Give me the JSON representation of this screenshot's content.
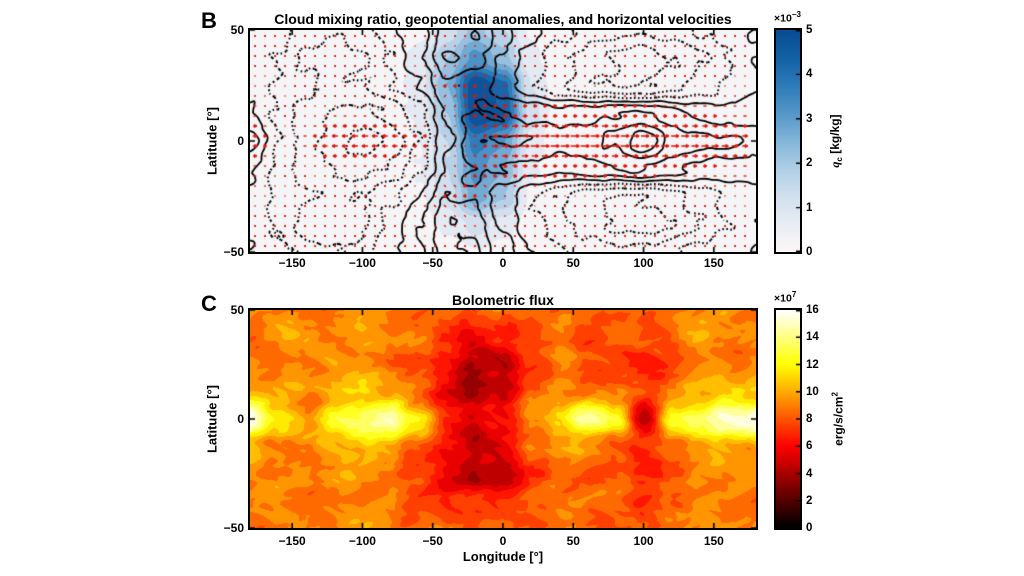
{
  "style": {
    "quiver_color": "#e81208",
    "contour_color": "#000000",
    "text_color": "#000000",
    "plot_background": "#fdf7f7"
  },
  "colormaps": {
    "blues": [
      "#fdf8f8",
      "#e9edf4",
      "#d2e0ee",
      "#b0cfe6",
      "#84b6da",
      "#5597c9",
      "#2f7cb9",
      "#1461a5",
      "#084c94"
    ],
    "hot": [
      "#000000",
      "#550000",
      "#aa0000",
      "#ff0000",
      "#ff5500",
      "#ffaa00",
      "#ffff00",
      "#ffff80",
      "#ffffff"
    ]
  },
  "panel_b": {
    "label": "B",
    "title": "Cloud mixing ratio, geopotential anomalies, and horizontal velocities",
    "ylabel": "Latitude [°]",
    "axis": {
      "xlim": [
        -180,
        180
      ],
      "ylim": [
        -50,
        50
      ],
      "xticks": [
        {
          "v": -150,
          "label": "−150"
        },
        {
          "v": -100,
          "label": "−100"
        },
        {
          "v": -50,
          "label": "−50"
        },
        {
          "v": 0,
          "label": "0"
        },
        {
          "v": 50,
          "label": "50"
        },
        {
          "v": 100,
          "label": "100"
        },
        {
          "v": 150,
          "label": "150"
        }
      ],
      "yticks": [
        {
          "v": 50,
          "label": "50"
        },
        {
          "v": 0,
          "label": "0"
        },
        {
          "v": -50,
          "label": "−50"
        }
      ]
    },
    "colorbar": {
      "multiplier_base": "×10",
      "multiplier_exp": "−3",
      "label_symbol": "q",
      "label_subscript": "c",
      "label_units": " [kg/kg]",
      "clim": [
        0,
        5
      ],
      "ticks": [
        {
          "v": 0,
          "label": "0"
        },
        {
          "v": 1,
          "label": "1"
        },
        {
          "v": 2,
          "label": "2"
        },
        {
          "v": 3,
          "label": "3"
        },
        {
          "v": 4,
          "label": "4"
        },
        {
          "v": 5,
          "label": "5"
        }
      ]
    },
    "chart_data": {
      "type": "heatmap+contour+quiver",
      "description": "Blue shading: cloud mixing ratio qc (x1e-3 kg/kg). Black contours: geopotential anomalies (solid positive, dotted negative). Red vectors: horizontal velocities with strong eastward equatorial jet east of the cloud patch near lon -20.",
      "lon": [
        -180,
        -160,
        -140,
        -120,
        -100,
        -80,
        -60,
        -40,
        -20,
        0,
        20,
        40,
        60,
        80,
        100,
        120,
        140,
        160,
        180
      ],
      "lat": [
        50,
        37.5,
        25,
        12.5,
        0,
        -12.5,
        -25,
        -37.5,
        -50
      ],
      "cloud_mixing_ratio_x1e-3": [
        [
          0,
          0,
          0,
          0,
          0,
          0,
          0.3,
          1.2,
          2.2,
          1.5,
          0.4,
          0,
          0,
          0,
          0,
          0,
          0,
          0,
          0
        ],
        [
          0,
          0,
          0,
          0,
          0,
          0.2,
          0.8,
          2.0,
          3.2,
          2.2,
          0.6,
          0.1,
          0,
          0,
          0,
          0,
          0,
          0,
          0
        ],
        [
          0,
          0,
          0,
          0,
          0.1,
          0.3,
          0.8,
          2.5,
          5.0,
          4.2,
          1.0,
          0.2,
          0,
          0,
          0,
          0,
          0,
          0,
          0
        ],
        [
          0,
          0,
          0,
          0,
          0.1,
          0.3,
          0.6,
          2.0,
          5.0,
          4.5,
          1.2,
          0.2,
          0,
          0,
          0,
          0,
          0,
          0,
          0
        ],
        [
          0,
          0,
          0,
          0,
          0.1,
          0.2,
          0.5,
          1.5,
          3.8,
          3.0,
          0.8,
          0.1,
          0,
          0,
          0,
          0,
          0,
          0,
          0
        ],
        [
          0,
          0,
          0,
          0,
          0,
          0.2,
          0.5,
          1.5,
          3.2,
          2.5,
          0.6,
          0.1,
          0,
          0,
          0,
          0,
          0,
          0,
          0
        ],
        [
          0,
          0,
          0,
          0,
          0,
          0.2,
          0.4,
          1.2,
          2.8,
          2.0,
          0.4,
          0,
          0,
          0,
          0,
          0,
          0,
          0,
          0
        ],
        [
          0,
          0,
          0,
          0,
          0,
          0,
          0.2,
          0.6,
          1.2,
          0.8,
          0.2,
          0,
          0,
          0,
          0,
          0,
          0,
          0,
          0
        ],
        [
          0,
          0,
          0,
          0,
          0,
          0,
          0,
          0.2,
          0.5,
          0.3,
          0,
          0,
          0,
          0,
          0,
          0,
          0,
          0,
          0
        ]
      ],
      "geopotential_anomaly": {
        "solid_levels": [
          0.5,
          1.5,
          2.5,
          3.5,
          4.5
        ],
        "dotted_levels": [
          -0.5,
          -1.5,
          -2.5,
          -3.5
        ],
        "field": [
          [
            0.4,
            0.0,
            -0.9,
            -1.3,
            -0.9,
            0.2,
            1.2,
            3.0,
            3.6,
            2.0,
            0.6,
            -0.3,
            -0.9,
            -1.2,
            -1.1,
            -0.7,
            -0.3,
            0.1,
            0.4
          ],
          [
            0.3,
            -0.6,
            -1.9,
            -2.3,
            -1.8,
            -0.4,
            1.4,
            3.5,
            3.0,
            1.4,
            0.0,
            -1.2,
            -2.0,
            -2.8,
            -3.2,
            -2.6,
            -1.6,
            -0.4,
            0.3
          ],
          [
            0.1,
            -0.7,
            -1.4,
            -1.7,
            -1.4,
            -0.7,
            0.6,
            2.4,
            2.2,
            1.0,
            -0.4,
            -1.4,
            -2.2,
            -2.6,
            -2.4,
            -1.9,
            -1.1,
            -0.3,
            0.1
          ],
          [
            0.8,
            -0.7,
            -2.1,
            -2.7,
            -2.9,
            -2.4,
            -0.9,
            1.6,
            2.8,
            2.6,
            2.1,
            1.9,
            2.1,
            2.3,
            2.6,
            1.9,
            1.3,
            1.0,
            0.8
          ],
          [
            1.8,
            -0.4,
            -2.0,
            -3.0,
            -4.0,
            -3.2,
            -1.4,
            1.2,
            3.2,
            3.6,
            3.3,
            3.1,
            3.3,
            3.7,
            5.6,
            3.4,
            2.9,
            2.7,
            1.8
          ],
          [
            0.8,
            -0.7,
            -2.1,
            -2.7,
            -2.9,
            -2.4,
            -0.9,
            1.6,
            2.8,
            2.6,
            2.1,
            1.9,
            2.1,
            2.3,
            2.6,
            1.9,
            1.3,
            1.0,
            0.8
          ],
          [
            0.1,
            -0.7,
            -1.4,
            -1.7,
            -1.4,
            -0.7,
            0.6,
            2.4,
            2.2,
            1.0,
            -0.4,
            -1.4,
            -2.2,
            -2.6,
            -2.4,
            -1.9,
            -1.1,
            -0.3,
            0.1
          ],
          [
            0.3,
            -0.6,
            -1.9,
            -2.3,
            -1.8,
            -0.4,
            1.4,
            3.5,
            3.0,
            1.4,
            0.0,
            -1.2,
            -2.0,
            -2.8,
            -3.2,
            -2.6,
            -1.6,
            -0.4,
            0.3
          ],
          [
            0.4,
            0.0,
            -0.9,
            -1.3,
            -0.9,
            0.2,
            1.2,
            3.0,
            3.6,
            2.0,
            0.6,
            -0.3,
            -0.9,
            -1.2,
            -1.1,
            -0.7,
            -0.3,
            0.1,
            0.4
          ]
        ]
      },
      "wind_u": [
        [
          0.6,
          0.6,
          0.6,
          0.6,
          0.6,
          0.6,
          0.8,
          1.0,
          0.8,
          0.6,
          0.6,
          0.6,
          0.6,
          0.6,
          0.6,
          0.6,
          0.6,
          0.6,
          0.6
        ],
        [
          1.0,
          0.8,
          0.6,
          0.6,
          0.8,
          1.0,
          1.4,
          1.6,
          1.2,
          0.8,
          0.8,
          0.8,
          0.8,
          0.8,
          0.8,
          0.8,
          0.8,
          0.8,
          1.0
        ],
        [
          1.5,
          1.2,
          0.8,
          0.8,
          1.0,
          1.4,
          2.0,
          2.4,
          2.0,
          1.5,
          1.2,
          1.2,
          1.2,
          1.2,
          1.2,
          1.2,
          1.2,
          1.2,
          1.5
        ],
        [
          3.0,
          1.5,
          -1.5,
          -2.5,
          -2.5,
          -2.0,
          -1.5,
          0.5,
          3.0,
          4.5,
          4.5,
          4.0,
          4.0,
          4.0,
          4.0,
          3.5,
          3.5,
          3.0,
          3.0
        ],
        [
          5.0,
          2.0,
          -3.0,
          -6.0,
          -6.5,
          -5.5,
          -4.0,
          -1.5,
          2.5,
          7.0,
          9.0,
          9.0,
          9.0,
          9.0,
          8.5,
          8.0,
          7.5,
          7.0,
          5.0
        ],
        [
          3.0,
          1.5,
          -1.5,
          -2.5,
          -2.5,
          -2.0,
          -1.5,
          0.5,
          3.0,
          4.5,
          4.5,
          4.0,
          4.0,
          4.0,
          4.0,
          3.5,
          3.5,
          3.0,
          3.0
        ],
        [
          1.5,
          1.2,
          0.8,
          0.8,
          1.0,
          1.4,
          2.0,
          2.4,
          2.0,
          1.5,
          1.2,
          1.2,
          1.2,
          1.2,
          1.2,
          1.2,
          1.2,
          1.2,
          1.5
        ],
        [
          1.0,
          0.8,
          0.6,
          0.6,
          0.8,
          1.0,
          1.4,
          1.6,
          1.2,
          0.8,
          0.8,
          0.8,
          0.8,
          0.8,
          0.8,
          0.8,
          0.8,
          0.8,
          1.0
        ],
        [
          0.6,
          0.6,
          0.6,
          0.6,
          0.6,
          0.6,
          0.8,
          1.0,
          0.8,
          0.6,
          0.6,
          0.6,
          0.6,
          0.6,
          0.6,
          0.6,
          0.6,
          0.6,
          0.6
        ]
      ],
      "wind_v": [
        [
          0,
          0,
          0,
          0,
          0,
          0,
          0,
          0,
          0,
          0,
          0,
          0,
          0,
          0,
          0,
          0,
          0,
          0,
          0
        ],
        [
          0,
          0,
          0,
          0,
          0,
          0,
          0.5,
          1.5,
          1.5,
          0.8,
          0,
          0,
          0,
          0,
          0,
          0,
          0,
          0,
          0
        ],
        [
          0,
          0,
          0,
          0,
          0,
          0,
          1.0,
          2.5,
          2.5,
          1.2,
          0.3,
          0,
          0,
          0,
          0,
          0,
          0,
          0,
          0
        ],
        [
          0,
          0,
          0,
          0,
          0,
          0,
          0.8,
          2.0,
          2.2,
          1.0,
          0.3,
          0,
          0,
          0,
          0,
          0,
          0,
          0,
          0
        ],
        [
          0,
          0,
          0,
          0,
          0,
          0,
          0,
          0,
          0,
          0,
          0,
          0,
          0,
          0,
          0,
          0,
          0,
          0,
          0
        ],
        [
          0,
          0,
          0,
          0,
          0,
          0,
          -0.8,
          -2.0,
          -2.2,
          -1.0,
          -0.3,
          0,
          0,
          0,
          0,
          0,
          0,
          0,
          0
        ],
        [
          0,
          0,
          0,
          0,
          0,
          0,
          -1.0,
          -2.5,
          -2.5,
          -1.2,
          -0.3,
          0,
          0,
          0,
          0,
          0,
          0,
          0,
          0
        ],
        [
          0,
          0,
          0,
          0,
          0,
          0,
          -0.5,
          -1.5,
          -1.5,
          -0.8,
          0,
          0,
          0,
          0,
          0,
          0,
          0,
          0,
          0
        ],
        [
          0,
          0,
          0,
          0,
          0,
          0,
          0,
          0,
          0,
          0,
          0,
          0,
          0,
          0,
          0,
          0,
          0,
          0,
          0
        ]
      ],
      "colormap": "blues"
    }
  },
  "panel_c": {
    "label": "C",
    "title": "Bolometric flux",
    "ylabel": "Latitude [°]",
    "xlabel": "Longitude [°]",
    "axis": {
      "xlim": [
        -180,
        180
      ],
      "ylim": [
        -50,
        50
      ],
      "xticks": [
        {
          "v": -150,
          "label": "−150"
        },
        {
          "v": -100,
          "label": "−100"
        },
        {
          "v": -50,
          "label": "−50"
        },
        {
          "v": 0,
          "label": "0"
        },
        {
          "v": 50,
          "label": "50"
        },
        {
          "v": 100,
          "label": "100"
        },
        {
          "v": 150,
          "label": "150"
        }
      ],
      "yticks": [
        {
          "v": 50,
          "label": "50"
        },
        {
          "v": 0,
          "label": "0"
        },
        {
          "v": -50,
          "label": "−50"
        }
      ]
    },
    "colorbar": {
      "multiplier_base": "×10",
      "multiplier_exp": "7",
      "label_text": "erg/s/cm",
      "label_superscript": "2",
      "clim": [
        0,
        16
      ],
      "ticks": [
        {
          "v": 0,
          "label": "0"
        },
        {
          "v": 2,
          "label": "2"
        },
        {
          "v": 4,
          "label": "4"
        },
        {
          "v": 6,
          "label": "6"
        },
        {
          "v": 8,
          "label": "8"
        },
        {
          "v": 10,
          "label": "10"
        },
        {
          "v": 12,
          "label": "12"
        },
        {
          "v": 14,
          "label": "14"
        },
        {
          "v": 16,
          "label": "16"
        }
      ]
    },
    "chart_data": {
      "type": "filled_contour",
      "description": "Emergent bolometric flux (x1e7 erg/s/cm2). Bright white/yellow spots along the equator near lon -180, -80, +60, +160; dark low-flux band near lon -20 under the cloud patch and a dark spot at lon +100 on the equator.",
      "lon": [
        -180,
        -160,
        -140,
        -120,
        -100,
        -80,
        -60,
        -40,
        -20,
        0,
        20,
        40,
        60,
        80,
        100,
        120,
        140,
        160,
        180
      ],
      "lat": [
        50,
        37.5,
        25,
        12.5,
        0,
        -12.5,
        -25,
        -37.5,
        -50
      ],
      "flux_x1e7": [
        [
          8.5,
          9.2,
          8.6,
          9.0,
          9.5,
          8.6,
          8.0,
          8.4,
          7.6,
          8.2,
          8.6,
          9.0,
          8.4,
          8.0,
          8.6,
          9.2,
          8.6,
          9.0,
          8.5
        ],
        [
          8.6,
          9.4,
          9.0,
          8.6,
          9.2,
          9.4,
          8.2,
          7.0,
          6.4,
          7.0,
          8.0,
          8.6,
          8.0,
          8.4,
          7.6,
          8.0,
          9.4,
          9.0,
          8.6
        ],
        [
          9.0,
          8.6,
          9.0,
          9.4,
          9.0,
          8.6,
          7.6,
          6.0,
          3.8,
          4.4,
          7.4,
          8.6,
          8.0,
          7.6,
          7.0,
          7.6,
          8.6,
          9.0,
          9.0
        ],
        [
          10.0,
          9.6,
          9.2,
          10.0,
          10.6,
          10.0,
          8.2,
          5.6,
          4.0,
          5.0,
          8.6,
          9.6,
          9.2,
          8.2,
          7.4,
          9.0,
          10.0,
          10.4,
          10.0
        ],
        [
          15.6,
          11.5,
          9.6,
          12.0,
          13.0,
          15.6,
          12.0,
          7.0,
          5.0,
          6.4,
          9.6,
          11.0,
          15.0,
          12.4,
          4.6,
          12.4,
          13.0,
          15.6,
          15.6
        ],
        [
          10.0,
          9.6,
          9.2,
          10.0,
          10.6,
          10.0,
          8.2,
          5.6,
          4.0,
          5.0,
          8.6,
          9.6,
          9.2,
          8.2,
          7.4,
          9.0,
          10.0,
          10.4,
          10.0
        ],
        [
          9.0,
          8.6,
          9.0,
          9.4,
          9.0,
          8.6,
          7.6,
          6.0,
          3.8,
          4.4,
          7.4,
          8.6,
          8.0,
          7.6,
          7.0,
          7.6,
          8.6,
          9.0,
          9.0
        ],
        [
          8.6,
          9.4,
          9.0,
          8.6,
          9.2,
          9.4,
          8.2,
          7.0,
          6.4,
          7.0,
          8.0,
          8.6,
          8.0,
          8.4,
          7.6,
          8.0,
          9.4,
          9.0,
          8.6
        ],
        [
          8.5,
          9.2,
          8.6,
          9.0,
          9.5,
          8.6,
          8.0,
          8.4,
          7.6,
          8.2,
          8.6,
          9.0,
          8.4,
          8.0,
          8.6,
          9.2,
          8.6,
          9.0,
          8.5
        ]
      ],
      "levels_step_x1e7": 1,
      "colormap": "hot"
    }
  }
}
